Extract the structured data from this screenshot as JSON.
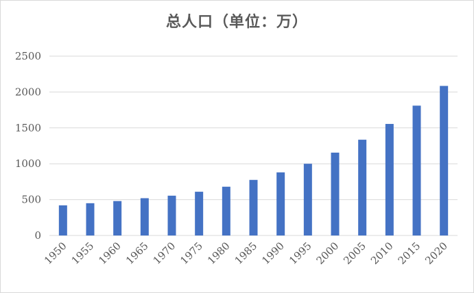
{
  "chart_data": {
    "type": "bar",
    "title": "总人口（单位：万）",
    "xlabel": "",
    "ylabel": "",
    "categories": [
      "1950",
      "1955",
      "1960",
      "1965",
      "1970",
      "1975",
      "1980",
      "1985",
      "1990",
      "1995",
      "2000",
      "2005",
      "2010",
      "2015",
      "2020"
    ],
    "values": [
      420,
      450,
      480,
      520,
      555,
      610,
      680,
      775,
      880,
      1000,
      1155,
      1335,
      1555,
      1810,
      2085
    ],
    "y_ticks": [
      "0",
      "500",
      "1000",
      "1500",
      "2000",
      "2500"
    ],
    "ylim": [
      0,
      2500
    ],
    "grid": true,
    "legend": "none",
    "bar_color": "#4472C4"
  }
}
